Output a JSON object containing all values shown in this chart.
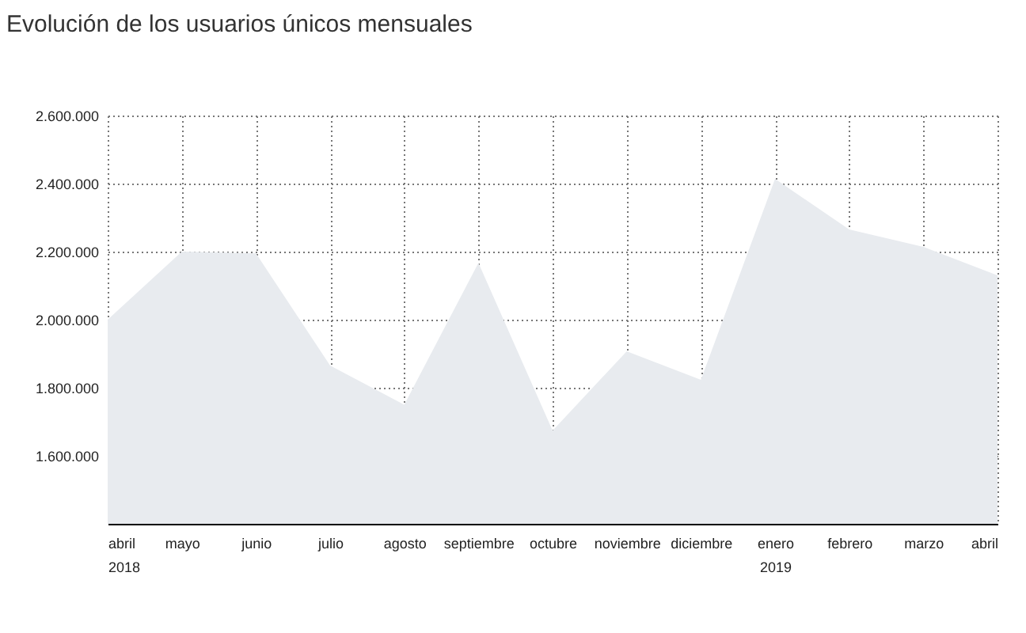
{
  "chart_data": {
    "type": "area",
    "title": "Evolución de los usuarios únicos mensuales",
    "categories": [
      "abril\n2018",
      "mayo",
      "junio",
      "julio",
      "agosto",
      "septiembre",
      "octubre",
      "noviembre",
      "diciembre",
      "enero\n2019",
      "febrero",
      "marzo",
      "abril"
    ],
    "series": [
      {
        "color": "#e8ebef",
        "values": [
          2000000,
          2200000,
          2195000,
          1865000,
          1750000,
          2167000,
          1674000,
          1907000,
          1823000,
          2414000,
          2265000,
          2214000,
          2130000
        ]
      }
    ],
    "ylim": [
      1400000,
      2600000
    ],
    "yticks": [
      {
        "value": 1600000,
        "label": "1.600.000"
      },
      {
        "value": 1800000,
        "label": "1.800.000"
      },
      {
        "value": 2000000,
        "label": "2.000.000"
      },
      {
        "value": 2200000,
        "label": "2.200.000"
      },
      {
        "value": 2400000,
        "label": "2.400.000"
      },
      {
        "value": 2600000,
        "label": "2.600.000"
      }
    ],
    "grid": true
  }
}
